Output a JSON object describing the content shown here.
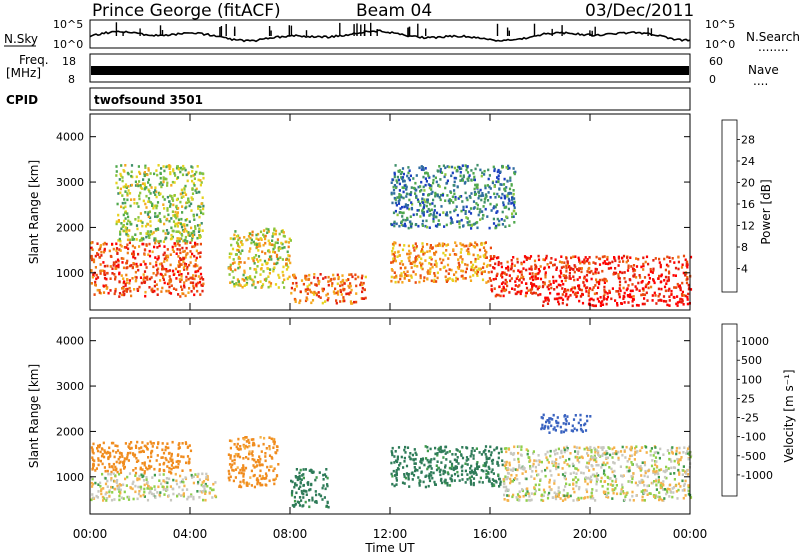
{
  "header": {
    "station": "Prince George (fitACF)",
    "beam": "Beam 04",
    "date": "03/Dec/2011"
  },
  "summary_panels": {
    "nsky_label": "N.Sky",
    "nsky_top_tick": "10^5",
    "nsky_bottom_tick": "10^0",
    "nsearch_label": "N.Search",
    "nsearch_dots": "........",
    "freq_label": "Freq.",
    "freq_unit": "[MHz]",
    "freq_ticks": [
      "18",
      "8"
    ],
    "nave_label": "Nave",
    "nave_dots": "....",
    "nave_ticks": [
      "60",
      "0"
    ],
    "cpid_label": "CPID",
    "cpid_value": "twofsound 3501"
  },
  "x_axis": {
    "label": "Time UT",
    "ticks": [
      "00:00",
      "04:00",
      "08:00",
      "12:00",
      "16:00",
      "20:00",
      "00:00"
    ]
  },
  "power_colorbar": {
    "label": "Power [dB]",
    "ticks": [
      "28",
      "24",
      "20",
      "16",
      "12",
      "8",
      "4"
    ],
    "colors": [
      "#0000ff",
      "#1b3fc0",
      "#2f6ca0",
      "#3f8f6a",
      "#4fa84c",
      "#8cc63a",
      "#e6d21e",
      "#f5a81e",
      "#f07d14",
      "#ea4a0e",
      "#e41e0e",
      "#ff0000"
    ]
  },
  "velocity_colorbar": {
    "label": "Velocity [m s⁻¹]",
    "ticks": [
      "1000",
      "500",
      "100",
      "25",
      "-25",
      "-100",
      "-500",
      "-1000"
    ],
    "colors": [
      "#2a3fb0",
      "#3a63c0",
      "#2e7b58",
      "#3f9b4c",
      "#8fd04a",
      "#c8c8c0",
      "#c8c8c0",
      "#f5b24a",
      "#f08c1e",
      "#ea5a14",
      "#e42d10",
      "#ff0000"
    ]
  },
  "chart_data": [
    {
      "type": "heatmap",
      "title": "Power",
      "xlabel": "Time UT",
      "ylabel": "Slant Range [km]",
      "x_ticks": [
        "00:00",
        "04:00",
        "08:00",
        "12:00",
        "16:00",
        "20:00",
        "00:00"
      ],
      "xlim_hours": [
        0,
        24
      ],
      "ylim": [
        180,
        4500
      ],
      "y_ticks": [
        1000,
        2000,
        3000,
        4000
      ],
      "colorbar_label": "Power [dB]",
      "colorbar_range": [
        0,
        30
      ],
      "regions": [
        {
          "t_start": 0.0,
          "t_end": 4.5,
          "r_min": 500,
          "r_max": 1700,
          "value": 24
        },
        {
          "t_start": 1.0,
          "t_end": 4.5,
          "r_min": 1700,
          "r_max": 3400,
          "value": 14
        },
        {
          "t_start": 5.5,
          "t_end": 8.0,
          "r_min": 700,
          "r_max": 2000,
          "value": 16
        },
        {
          "t_start": 8.0,
          "t_end": 11.0,
          "r_min": 350,
          "r_max": 1000,
          "value": 22
        },
        {
          "t_start": 12.0,
          "t_end": 16.0,
          "r_min": 800,
          "r_max": 1700,
          "value": 20
        },
        {
          "t_start": 12.0,
          "t_end": 17.0,
          "r_min": 2000,
          "r_max": 3400,
          "value": 8
        },
        {
          "t_start": 16.0,
          "t_end": 24.0,
          "r_min": 500,
          "r_max": 1400,
          "value": 26
        },
        {
          "t_start": 18.0,
          "t_end": 24.0,
          "r_min": 300,
          "r_max": 500,
          "value": 30
        }
      ]
    },
    {
      "type": "heatmap",
      "title": "Velocity",
      "xlabel": "Time UT",
      "ylabel": "Slant Range [km]",
      "x_ticks": [
        "00:00",
        "04:00",
        "08:00",
        "12:00",
        "16:00",
        "20:00",
        "00:00"
      ],
      "xlim_hours": [
        0,
        24
      ],
      "ylim": [
        180,
        4500
      ],
      "y_ticks": [
        1000,
        2000,
        3000,
        4000
      ],
      "colorbar_label": "Velocity [m s⁻¹]",
      "colorbar_range": [
        -1000,
        1000
      ],
      "regions": [
        {
          "t_start": 0.0,
          "t_end": 4.0,
          "r_min": 1100,
          "r_max": 1800,
          "value": -200
        },
        {
          "t_start": 0.0,
          "t_end": 5.0,
          "r_min": 500,
          "r_max": 1100,
          "value": 0
        },
        {
          "t_start": 5.5,
          "t_end": 7.5,
          "r_min": 800,
          "r_max": 1900,
          "value": -150
        },
        {
          "t_start": 8.0,
          "t_end": 9.5,
          "r_min": 350,
          "r_max": 1200,
          "value": 150
        },
        {
          "t_start": 12.0,
          "t_end": 16.5,
          "r_min": 800,
          "r_max": 1700,
          "value": 150
        },
        {
          "t_start": 16.5,
          "t_end": 24.0,
          "r_min": 500,
          "r_max": 1700,
          "value": 0
        },
        {
          "t_start": 18.0,
          "t_end": 20.0,
          "r_min": 2000,
          "r_max": 2400,
          "value": 600
        }
      ]
    }
  ]
}
